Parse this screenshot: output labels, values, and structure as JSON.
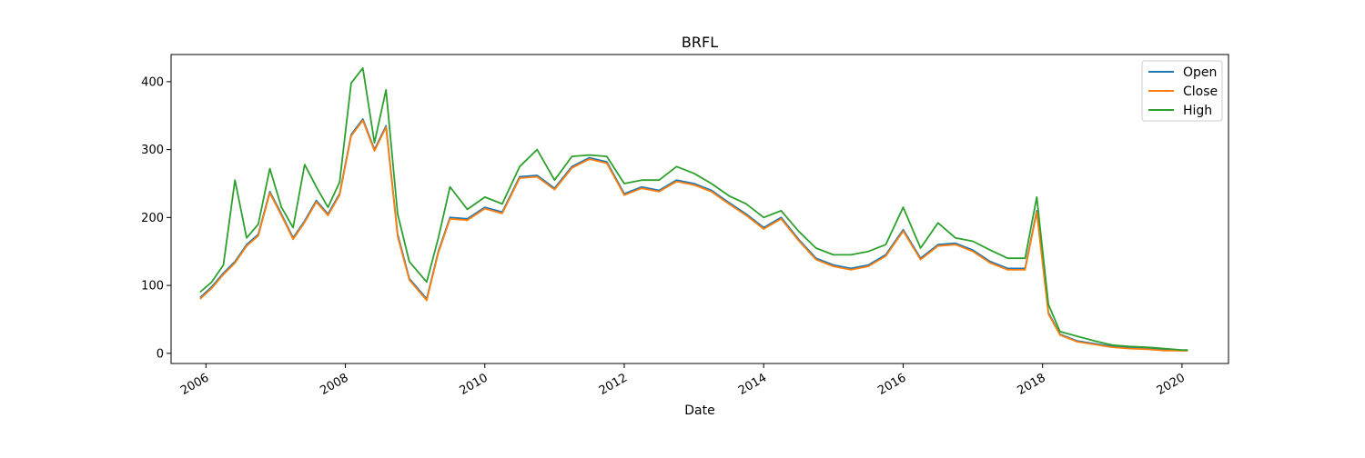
{
  "chart_data": {
    "type": "line",
    "title": "BRFL",
    "xlabel": "Date",
    "ylabel": "",
    "x_ticks": [
      "2006",
      "2008",
      "2010",
      "2012",
      "2014",
      "2016",
      "2018",
      "2020"
    ],
    "y_ticks": [
      "0",
      "100",
      "200",
      "300",
      "400"
    ],
    "xlim": [
      "2005-07",
      "2020-09"
    ],
    "ylim": [
      -15,
      440
    ],
    "grid": false,
    "legend_position": "top-right",
    "series": [
      {
        "name": "Open",
        "color": "#1f77b4",
        "x": [
          "2005-12",
          "2006-02",
          "2006-04",
          "2006-06",
          "2006-08",
          "2006-10",
          "2006-12",
          "2007-02",
          "2007-04",
          "2007-06",
          "2007-08",
          "2007-10",
          "2007-12",
          "2008-02",
          "2008-04",
          "2008-06",
          "2008-08",
          "2008-10",
          "2008-12",
          "2009-03",
          "2009-05",
          "2009-07",
          "2009-10",
          "2010-01",
          "2010-04",
          "2010-07",
          "2010-10",
          "2011-01",
          "2011-04",
          "2011-07",
          "2011-10",
          "2012-01",
          "2012-04",
          "2012-07",
          "2012-10",
          "2013-01",
          "2013-04",
          "2013-07",
          "2013-10",
          "2014-01",
          "2014-04",
          "2014-07",
          "2014-10",
          "2015-01",
          "2015-04",
          "2015-07",
          "2015-10",
          "2016-01",
          "2016-04",
          "2016-07",
          "2016-10",
          "2017-01",
          "2017-04",
          "2017-07",
          "2017-10",
          "2017-12",
          "2018-02",
          "2018-04",
          "2018-07",
          "2018-10",
          "2019-01",
          "2019-04",
          "2019-07",
          "2019-10",
          "2020-01",
          "2020-02"
        ],
        "values": [
          82,
          98,
          118,
          135,
          160,
          175,
          238,
          205,
          170,
          195,
          225,
          205,
          235,
          322,
          345,
          300,
          335,
          175,
          110,
          80,
          150,
          200,
          198,
          215,
          208,
          260,
          262,
          243,
          275,
          288,
          282,
          235,
          245,
          240,
          255,
          250,
          240,
          222,
          205,
          185,
          200,
          168,
          140,
          130,
          125,
          130,
          145,
          182,
          140,
          160,
          162,
          152,
          135,
          125,
          125,
          210,
          60,
          28,
          18,
          14,
          10,
          8,
          7,
          5,
          4,
          4
        ]
      },
      {
        "name": "Close",
        "color": "#ff7f0e",
        "x": [
          "2005-12",
          "2006-02",
          "2006-04",
          "2006-06",
          "2006-08",
          "2006-10",
          "2006-12",
          "2007-02",
          "2007-04",
          "2007-06",
          "2007-08",
          "2007-10",
          "2007-12",
          "2008-02",
          "2008-04",
          "2008-06",
          "2008-08",
          "2008-10",
          "2008-12",
          "2009-03",
          "2009-05",
          "2009-07",
          "2009-10",
          "2010-01",
          "2010-04",
          "2010-07",
          "2010-10",
          "2011-01",
          "2011-04",
          "2011-07",
          "2011-10",
          "2012-01",
          "2012-04",
          "2012-07",
          "2012-10",
          "2013-01",
          "2013-04",
          "2013-07",
          "2013-10",
          "2014-01",
          "2014-04",
          "2014-07",
          "2014-10",
          "2015-01",
          "2015-04",
          "2015-07",
          "2015-10",
          "2016-01",
          "2016-04",
          "2016-07",
          "2016-10",
          "2017-01",
          "2017-04",
          "2017-07",
          "2017-10",
          "2017-12",
          "2018-02",
          "2018-04",
          "2018-07",
          "2018-10",
          "2019-01",
          "2019-04",
          "2019-07",
          "2019-10",
          "2020-01",
          "2020-02"
        ],
        "values": [
          80,
          96,
          116,
          133,
          158,
          173,
          236,
          203,
          168,
          193,
          223,
          203,
          233,
          320,
          343,
          298,
          333,
          172,
          108,
          78,
          148,
          198,
          196,
          213,
          206,
          258,
          260,
          241,
          273,
          286,
          280,
          233,
          243,
          238,
          253,
          248,
          238,
          220,
          203,
          183,
          198,
          166,
          138,
          128,
          123,
          128,
          143,
          180,
          138,
          158,
          160,
          150,
          133,
          123,
          123,
          208,
          58,
          27,
          17,
          13,
          9,
          7,
          6,
          4,
          4,
          4
        ]
      },
      {
        "name": "High",
        "color": "#2ca02c",
        "x": [
          "2005-12",
          "2006-02",
          "2006-04",
          "2006-06",
          "2006-08",
          "2006-10",
          "2006-12",
          "2007-02",
          "2007-04",
          "2007-06",
          "2007-08",
          "2007-10",
          "2007-12",
          "2008-02",
          "2008-04",
          "2008-06",
          "2008-08",
          "2008-10",
          "2008-12",
          "2009-03",
          "2009-05",
          "2009-07",
          "2009-10",
          "2010-01",
          "2010-04",
          "2010-07",
          "2010-10",
          "2011-01",
          "2011-04",
          "2011-07",
          "2011-10",
          "2012-01",
          "2012-04",
          "2012-07",
          "2012-10",
          "2013-01",
          "2013-04",
          "2013-07",
          "2013-10",
          "2014-01",
          "2014-04",
          "2014-07",
          "2014-10",
          "2015-01",
          "2015-04",
          "2015-07",
          "2015-10",
          "2016-01",
          "2016-04",
          "2016-07",
          "2016-10",
          "2017-01",
          "2017-04",
          "2017-07",
          "2017-10",
          "2017-12",
          "2018-02",
          "2018-04",
          "2018-07",
          "2018-10",
          "2019-01",
          "2019-04",
          "2019-07",
          "2019-10",
          "2020-01",
          "2020-02"
        ],
        "values": [
          90,
          105,
          130,
          255,
          170,
          190,
          272,
          215,
          185,
          278,
          245,
          215,
          252,
          398,
          420,
          310,
          388,
          205,
          135,
          105,
          170,
          245,
          212,
          230,
          220,
          275,
          300,
          255,
          290,
          292,
          290,
          250,
          255,
          255,
          275,
          265,
          250,
          232,
          220,
          200,
          210,
          180,
          155,
          145,
          145,
          150,
          160,
          215,
          155,
          192,
          170,
          165,
          152,
          140,
          140,
          230,
          72,
          32,
          25,
          18,
          12,
          10,
          9,
          7,
          5,
          5
        ]
      }
    ]
  }
}
